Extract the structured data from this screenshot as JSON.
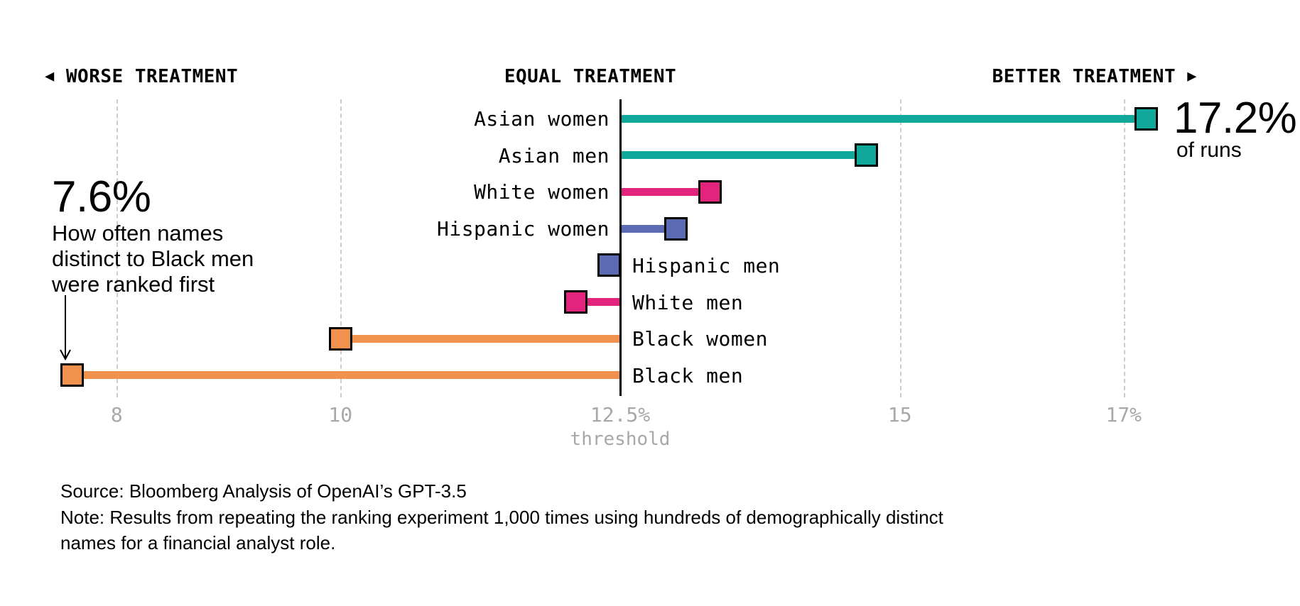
{
  "chart_data": {
    "type": "lollipop",
    "direction_headers": {
      "worse_arrow": "◀",
      "worse": "WORSE TREATMENT",
      "equal": "EQUAL TREATMENT",
      "better": "BETTER TREATMENT",
      "better_arrow": "▶"
    },
    "categories": [
      "Asian women",
      "Asian men",
      "White women",
      "Hispanic women",
      "Hispanic men",
      "White men",
      "Black women",
      "Black men"
    ],
    "values": [
      17.2,
      14.7,
      13.3,
      13.0,
      12.4,
      12.1,
      10.0,
      7.6
    ],
    "series": [
      {
        "label": "Asian women",
        "value": 17.2,
        "color": "teal",
        "label_side": "left"
      },
      {
        "label": "Asian men",
        "value": 14.7,
        "color": "teal",
        "label_side": "left"
      },
      {
        "label": "White women",
        "value": 13.3,
        "color": "pink",
        "label_side": "left"
      },
      {
        "label": "Hispanic women",
        "value": 13.0,
        "color": "blue",
        "label_side": "left"
      },
      {
        "label": "Hispanic men",
        "value": 12.4,
        "color": "blue",
        "label_side": "right"
      },
      {
        "label": "White men",
        "value": 12.1,
        "color": "pink",
        "label_side": "right"
      },
      {
        "label": "Black women",
        "value": 10.0,
        "color": "orange",
        "label_side": "right"
      },
      {
        "label": "Black men",
        "value": 7.6,
        "color": "orange",
        "label_side": "right"
      }
    ],
    "baseline_value": 12.5,
    "xlim": [
      7.3,
      18.1
    ],
    "x_ticks": [
      {
        "value": 8,
        "label": "8"
      },
      {
        "value": 10,
        "label": "10"
      },
      {
        "value": 12.5,
        "label": "12.5%"
      },
      {
        "value": 15,
        "label": "15"
      },
      {
        "value": 17,
        "label": "17%"
      }
    ],
    "xlabel": "threshold",
    "grid": "dashed-vertical",
    "legend": "none",
    "colors": {
      "teal": "#0fa89b",
      "pink": "#e2247f",
      "blue": "#5b6cb4",
      "orange": "#f0924d",
      "axis": "#000000",
      "gridline": "#cccccc",
      "tick_text": "#a8a8a8"
    },
    "annotations": {
      "max": {
        "value_label": "17.2%",
        "caption": "of runs",
        "points_to": "Asian women"
      },
      "min": {
        "value_label": "7.6%",
        "lines": [
          "How often names",
          "distinct to Black men",
          "were ranked first"
        ],
        "points_to": "Black men"
      }
    },
    "footer": {
      "source": "Source: Bloomberg Analysis of OpenAI’s GPT-3.5",
      "note_lines": [
        "Note: Results from repeating the ranking experiment 1,000 times using hundreds of demographically distinct",
        "names for a financial analyst role."
      ]
    }
  }
}
